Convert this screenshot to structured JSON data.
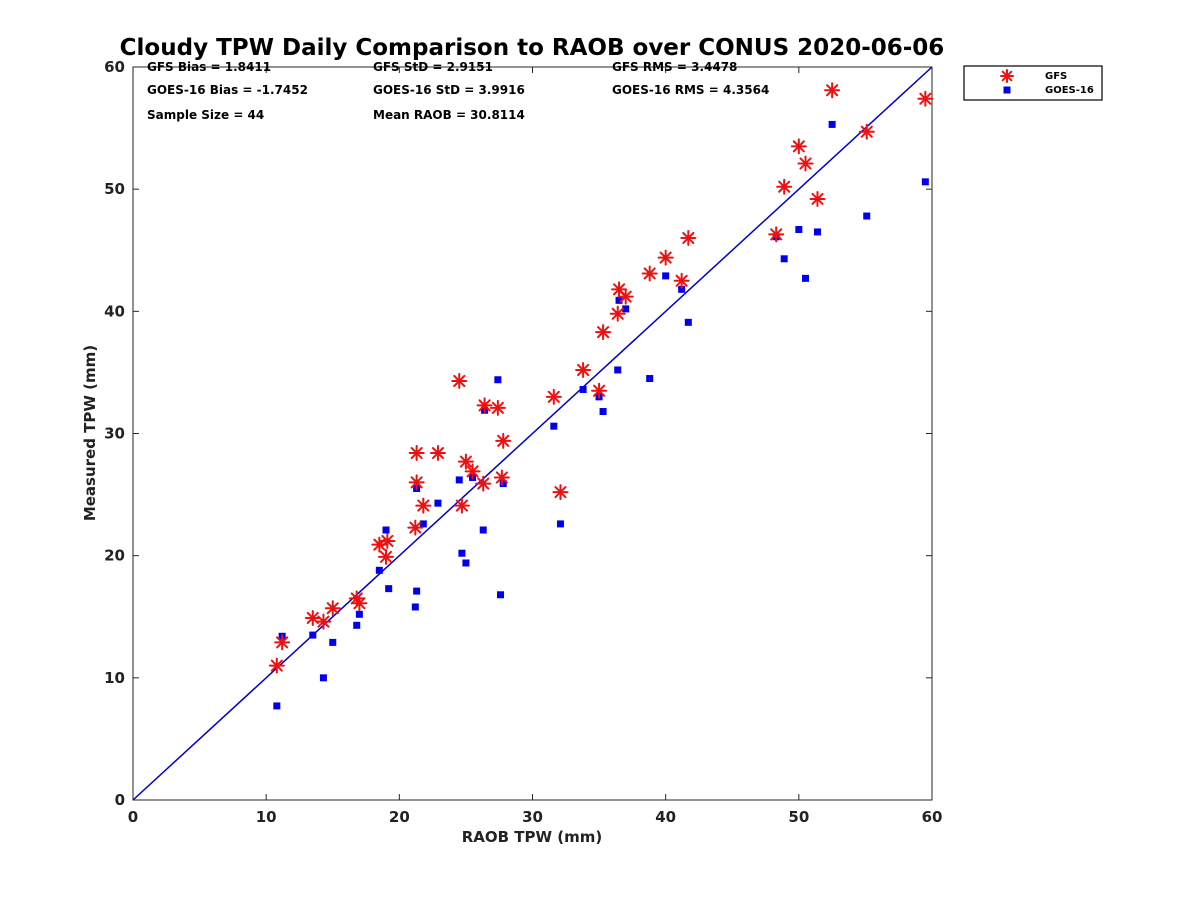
{
  "chart_data": {
    "type": "scatter",
    "title": "Cloudy TPW Daily Comparison to RAOB over CONUS 2020-06-06",
    "xlabel": "RAOB TPW (mm)",
    "ylabel": "Measured TPW (mm)",
    "xlim": [
      0,
      60
    ],
    "ylim": [
      0,
      60
    ],
    "xticks": [
      "0",
      "10",
      "20",
      "30",
      "40",
      "50",
      "60"
    ],
    "yticks": [
      "0",
      "10",
      "20",
      "30",
      "40",
      "50",
      "60"
    ],
    "grid": false,
    "legend_position": "outside-top-right",
    "reference_line": {
      "from": [
        0,
        0
      ],
      "to": [
        60,
        60
      ],
      "color": "#0000cc"
    },
    "stats": [
      [
        "GFS Bias = 1.8411",
        "GFS StD = 2.9151",
        "GFS RMS = 3.4478"
      ],
      [
        "GOES-16 Bias = -1.7452",
        "GOES-16 StD = 3.9916",
        "GOES-16 RMS = 4.3564"
      ],
      [
        "Sample Size = 44",
        "Mean RAOB = 30.8114",
        ""
      ]
    ],
    "series": [
      {
        "name": "GFS",
        "marker": "asterisk",
        "color": "#ee1111",
        "points": [
          [
            10.8,
            11.0
          ],
          [
            11.2,
            12.9
          ],
          [
            13.5,
            14.9
          ],
          [
            14.3,
            14.6
          ],
          [
            15.0,
            15.7
          ],
          [
            16.8,
            16.5
          ],
          [
            17.0,
            16.1
          ],
          [
            18.5,
            20.9
          ],
          [
            19.1,
            21.2
          ],
          [
            19.0,
            19.9
          ],
          [
            21.2,
            22.3
          ],
          [
            21.3,
            26.0
          ],
          [
            21.3,
            28.4
          ],
          [
            21.8,
            24.1
          ],
          [
            22.9,
            28.4
          ],
          [
            24.5,
            34.3
          ],
          [
            24.7,
            24.1
          ],
          [
            25.0,
            27.7
          ],
          [
            25.5,
            26.9
          ],
          [
            26.3,
            25.9
          ],
          [
            26.4,
            32.3
          ],
          [
            27.4,
            32.1
          ],
          [
            27.8,
            29.4
          ],
          [
            27.7,
            26.4
          ],
          [
            31.6,
            33.0
          ],
          [
            32.1,
            25.2
          ],
          [
            33.8,
            35.2
          ],
          [
            35.0,
            33.5
          ],
          [
            35.3,
            38.3
          ],
          [
            36.4,
            39.8
          ],
          [
            36.5,
            41.8
          ],
          [
            37.0,
            41.2
          ],
          [
            38.8,
            43.1
          ],
          [
            40.0,
            44.4
          ],
          [
            41.2,
            42.5
          ],
          [
            41.7,
            46.0
          ],
          [
            48.3,
            46.3
          ],
          [
            48.9,
            50.2
          ],
          [
            50.0,
            53.5
          ],
          [
            50.5,
            52.1
          ],
          [
            51.4,
            49.2
          ],
          [
            52.5,
            58.1
          ],
          [
            55.1,
            54.7
          ],
          [
            59.5,
            57.4
          ]
        ]
      },
      {
        "name": "GOES-16",
        "marker": "square",
        "color": "#0000ee",
        "points": [
          [
            10.8,
            7.7
          ],
          [
            11.2,
            13.4
          ],
          [
            13.5,
            13.5
          ],
          [
            14.3,
            10.0
          ],
          [
            15.0,
            12.9
          ],
          [
            16.8,
            14.3
          ],
          [
            17.0,
            15.2
          ],
          [
            18.5,
            18.8
          ],
          [
            19.0,
            22.1
          ],
          [
            19.2,
            17.3
          ],
          [
            21.2,
            15.8
          ],
          [
            21.3,
            17.1
          ],
          [
            21.3,
            25.5
          ],
          [
            21.8,
            22.6
          ],
          [
            22.9,
            24.3
          ],
          [
            24.5,
            26.2
          ],
          [
            24.7,
            20.2
          ],
          [
            25.0,
            19.4
          ],
          [
            25.5,
            26.4
          ],
          [
            26.3,
            22.1
          ],
          [
            26.4,
            31.9
          ],
          [
            27.4,
            34.4
          ],
          [
            27.6,
            16.8
          ],
          [
            27.8,
            25.9
          ],
          [
            31.6,
            30.6
          ],
          [
            32.1,
            22.6
          ],
          [
            33.8,
            33.6
          ],
          [
            35.0,
            33.0
          ],
          [
            35.3,
            31.8
          ],
          [
            36.4,
            35.2
          ],
          [
            36.5,
            40.9
          ],
          [
            37.0,
            40.2
          ],
          [
            38.8,
            34.5
          ],
          [
            40.0,
            42.9
          ],
          [
            41.2,
            41.8
          ],
          [
            41.7,
            39.1
          ],
          [
            48.3,
            46.1
          ],
          [
            48.9,
            44.3
          ],
          [
            50.0,
            46.7
          ],
          [
            50.5,
            42.7
          ],
          [
            51.4,
            46.5
          ],
          [
            52.5,
            55.3
          ],
          [
            55.1,
            47.8
          ],
          [
            59.5,
            50.6
          ]
        ]
      }
    ]
  }
}
